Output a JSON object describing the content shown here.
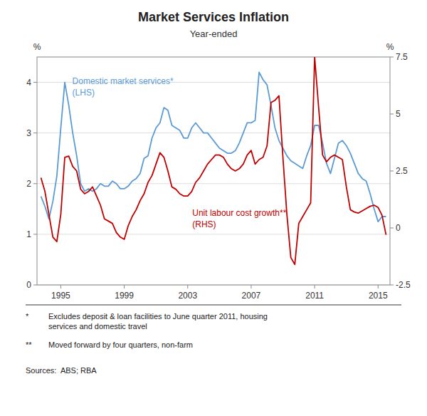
{
  "chart_data": {
    "type": "line",
    "title": "Market Services Inflation",
    "subtitle": "Year-ended",
    "y_label": "%",
    "y2_label": "%",
    "xlim": [
      1993.5,
      2015.75
    ],
    "xticks": [
      1995,
      1999,
      2003,
      2007,
      2011,
      2015
    ],
    "ylim": [
      0,
      4.5
    ],
    "yticks": [
      0,
      1,
      2,
      3,
      4
    ],
    "y2lim": [
      -2.5,
      7.5
    ],
    "y2ticks": [
      -2.5,
      0,
      2.5,
      5,
      7.5
    ],
    "grid": true,
    "x": [
      1993.75,
      1994.0,
      1994.25,
      1994.5,
      1994.75,
      1995.0,
      1995.25,
      1995.5,
      1995.75,
      1996.0,
      1996.25,
      1996.5,
      1996.75,
      1997.0,
      1997.25,
      1997.5,
      1997.75,
      1998.0,
      1998.25,
      1998.5,
      1998.75,
      1999.0,
      1999.25,
      1999.5,
      1999.75,
      2000.0,
      2000.25,
      2000.5,
      2000.75,
      2001.0,
      2001.25,
      2001.5,
      2001.75,
      2002.0,
      2002.25,
      2002.5,
      2002.75,
      2003.0,
      2003.25,
      2003.5,
      2003.75,
      2004.0,
      2004.25,
      2004.5,
      2004.75,
      2005.0,
      2005.25,
      2005.5,
      2005.75,
      2006.0,
      2006.25,
      2006.5,
      2006.75,
      2007.0,
      2007.25,
      2007.5,
      2007.75,
      2008.0,
      2008.25,
      2008.5,
      2008.75,
      2009.0,
      2009.25,
      2009.5,
      2009.75,
      2010.0,
      2010.25,
      2010.5,
      2010.75,
      2011.0,
      2011.25,
      2011.5,
      2011.75,
      2012.0,
      2012.25,
      2012.5,
      2012.75,
      2013.0,
      2013.25,
      2013.5,
      2013.75,
      2014.0,
      2014.25,
      2014.5,
      2014.75,
      2015.0,
      2015.25,
      2015.5
    ],
    "series": [
      {
        "name": "Domestic market services*",
        "color": "#5B9BD5",
        "values": [
          1.75,
          1.55,
          1.3,
          1.65,
          2.15,
          3.1,
          4.0,
          3.55,
          3.0,
          2.55,
          2.0,
          1.85,
          1.9,
          1.85,
          1.9,
          2.0,
          1.95,
          1.95,
          2.05,
          2.0,
          1.9,
          1.9,
          1.95,
          2.05,
          2.1,
          2.2,
          2.5,
          2.55,
          2.9,
          3.1,
          3.2,
          3.5,
          3.45,
          3.15,
          3.1,
          3.05,
          2.9,
          2.9,
          3.1,
          3.2,
          3.1,
          3.0,
          3.0,
          2.9,
          2.8,
          2.7,
          2.65,
          2.6,
          2.6,
          2.65,
          2.8,
          3.0,
          3.2,
          3.2,
          3.25,
          4.2,
          4.05,
          3.95,
          3.55,
          3.1,
          2.85,
          2.7,
          2.55,
          2.45,
          2.4,
          2.35,
          2.3,
          2.55,
          2.75,
          3.15,
          3.15,
          2.8,
          2.4,
          2.2,
          2.5,
          2.8,
          2.85,
          2.75,
          2.6,
          2.4,
          2.2,
          2.1,
          2.05,
          1.8,
          1.5,
          1.25,
          1.35,
          1.35
        ]
      },
      {
        "name": "Unit labour cost growth**",
        "color": "#C00000",
        "axis": "y2",
        "values": [
          2.2,
          1.6,
          0.6,
          -0.4,
          -0.6,
          0.6,
          3.1,
          3.15,
          2.7,
          2.5,
          1.7,
          1.5,
          1.6,
          1.8,
          1.4,
          1.0,
          0.4,
          0.3,
          0.2,
          -0.2,
          -0.4,
          -0.5,
          0.1,
          0.5,
          0.8,
          1.2,
          1.5,
          2.0,
          2.3,
          2.8,
          3.3,
          3.1,
          2.5,
          1.8,
          1.7,
          1.5,
          1.4,
          1.4,
          1.6,
          2.0,
          2.2,
          2.5,
          2.8,
          3.0,
          3.2,
          3.2,
          3.1,
          2.8,
          2.6,
          2.5,
          2.6,
          2.8,
          3.2,
          3.4,
          2.8,
          3.0,
          3.1,
          3.6,
          5.5,
          5.6,
          5.8,
          3.1,
          0.6,
          -1.3,
          -1.6,
          0.2,
          0.5,
          0.8,
          1.1,
          7.5,
          5.3,
          3.2,
          2.9,
          3.1,
          3.2,
          3.1,
          3.0,
          1.8,
          0.8,
          0.7,
          0.65,
          0.75,
          0.85,
          0.95,
          1.0,
          0.9,
          0.55,
          -0.3
        ]
      }
    ],
    "annotations": [
      "(LHS)",
      "(RHS)"
    ],
    "footnotes": [
      {
        "mark": "*",
        "text": "Excludes deposit & loan facilities to June quarter 2011, housing\nservices and domestic travel"
      },
      {
        "mark": "**",
        "text": "Moved forward by four quarters, non-farm"
      }
    ],
    "sources": "Sources:  ABS; RBA"
  }
}
